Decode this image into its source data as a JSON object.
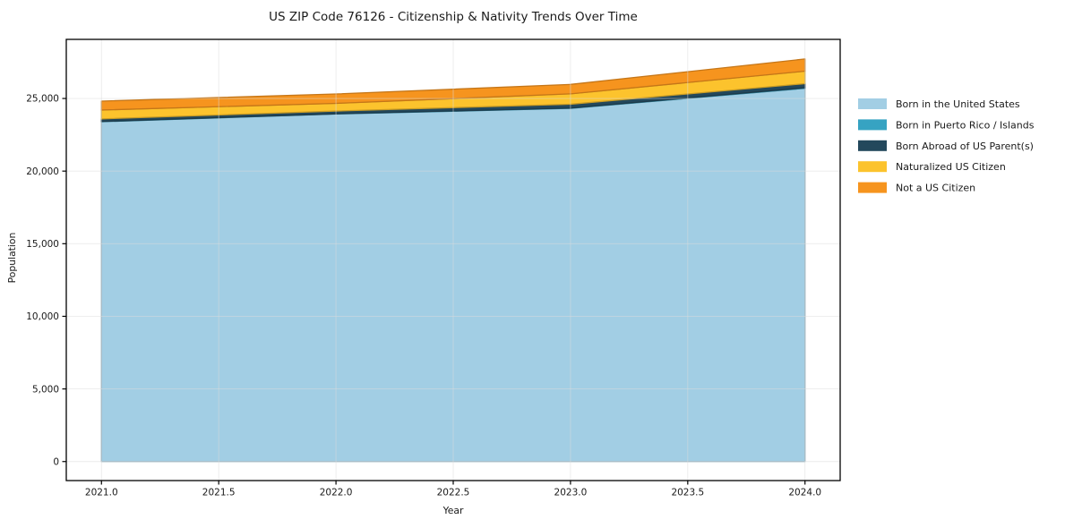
{
  "chart_data": {
    "type": "area",
    "title": "US ZIP Code 76126 - Citizenship & Nativity Trends Over Time",
    "xlabel": "Year",
    "ylabel": "Population",
    "x": [
      2021,
      2022,
      2023,
      2024
    ],
    "series": [
      {
        "name": "Born in the United States",
        "color": "#a2cee4",
        "values": [
          23400,
          23930,
          24320,
          25700
        ]
      },
      {
        "name": "Born in Puerto Rico / Islands",
        "color": "#36a3c2",
        "values": [
          15,
          15,
          20,
          40
        ]
      },
      {
        "name": "Born Abroad of US Parent(s)",
        "color": "#23485c",
        "values": [
          180,
          190,
          265,
          280
        ]
      },
      {
        "name": "Naturalized US Citizen",
        "color": "#fcc32d",
        "values": [
          610,
          530,
          715,
          860
        ]
      },
      {
        "name": "Not a US Citizen",
        "color": "#f6941e",
        "values": [
          615,
          645,
          650,
          840
        ]
      }
    ],
    "totals": [
      24820,
      25310,
      25970,
      27720
    ],
    "xlim": [
      2020.85,
      2024.15
    ],
    "ylim": [
      -1310,
      29070
    ],
    "xticks": [
      "2021.0",
      "2021.5",
      "2022.0",
      "2022.5",
      "2023.0",
      "2023.5",
      "2024.0"
    ],
    "xtick_values": [
      2021.0,
      2021.5,
      2022.0,
      2022.5,
      2023.0,
      2023.5,
      2024.0
    ],
    "yticks": [
      "0",
      "5,000",
      "10,000",
      "15,000",
      "20,000",
      "25,000"
    ],
    "ytick_values": [
      0,
      5000,
      10000,
      15000,
      20000,
      25000
    ],
    "grid": true,
    "grid_color": "#dcdcdc",
    "spine_color": "#000000",
    "legend_position": "right"
  }
}
